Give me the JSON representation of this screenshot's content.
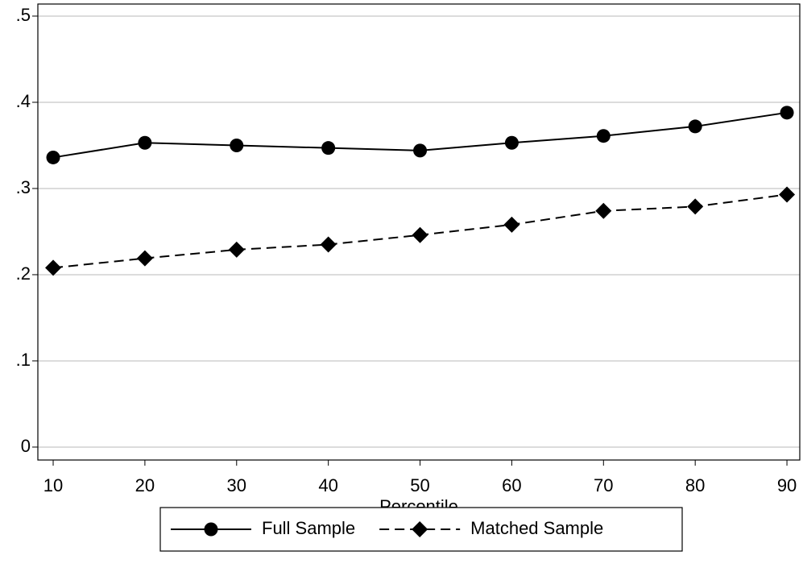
{
  "chart_data": {
    "type": "line",
    "x_label": "Percentile",
    "x": [
      10,
      20,
      30,
      40,
      50,
      60,
      70,
      80,
      90
    ],
    "series": [
      {
        "name": "Full Sample",
        "color": "#000000",
        "marker": "circle",
        "linestyle": "solid",
        "values": [
          0.336,
          0.353,
          0.35,
          0.347,
          0.344,
          0.353,
          0.361,
          0.372,
          0.388
        ]
      },
      {
        "name": "Matched Sample",
        "color": "#000000",
        "marker": "diamond",
        "linestyle": "dashed",
        "values": [
          0.208,
          0.219,
          0.229,
          0.235,
          0.246,
          0.258,
          0.274,
          0.279,
          0.293
        ]
      }
    ],
    "xlim": [
      8.33,
      91.4
    ],
    "xticks": [
      10,
      20,
      30,
      40,
      50,
      60,
      70,
      80,
      90
    ],
    "ylim": [
      -0.015,
      0.514
    ],
    "yticks": [
      0,
      {
        "value": 0.1,
        "label": ".1"
      },
      {
        "value": 0.2,
        "label": ".2"
      },
      {
        "value": 0.3,
        "label": ".3"
      },
      {
        "value": 0.4,
        "label": ".4"
      },
      {
        "value": 0.5,
        "label": ".5"
      }
    ],
    "grid": true,
    "legend": "bottom"
  }
}
